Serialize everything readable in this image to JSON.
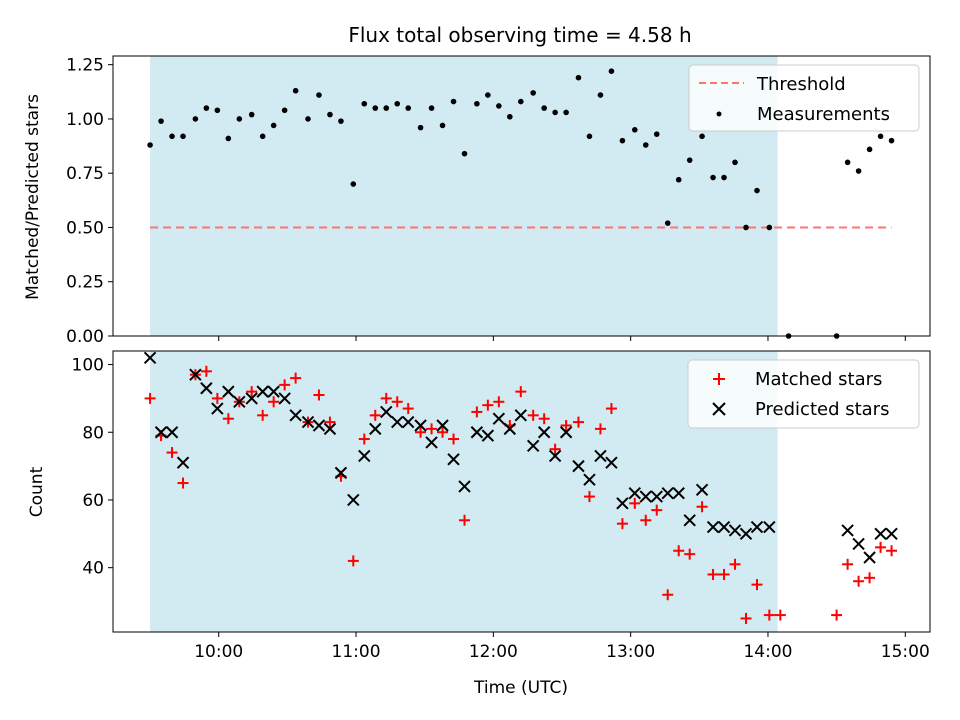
{
  "chart_data": {
    "title": "Flux total observing time = 4.58 h",
    "xlabel": "Time (UTC)",
    "x_tick_labels": [
      "10:00",
      "11:00",
      "12:00",
      "13:00",
      "14:00",
      "15:00"
    ],
    "x_tick_hours": [
      10,
      11,
      12,
      13,
      14,
      15
    ],
    "xlim_hours": [
      9.23,
      15.18
    ],
    "observing_window_hours": [
      9.5,
      14.07
    ],
    "observing_window_color": "#add8e6",
    "panels": [
      {
        "type": "scatter",
        "ylabel": "Matched/Predicted stars",
        "ylim": [
          0,
          1.29
        ],
        "y_tick_labels": [
          "0.00",
          "0.25",
          "0.50",
          "0.75",
          "1.00",
          "1.25"
        ],
        "y_tick_values": [
          0,
          0.25,
          0.5,
          0.75,
          1.0,
          1.25
        ],
        "legend_position": "top-right",
        "threshold": {
          "name": "Threshold",
          "value": 0.5,
          "x_range": [
            9.5,
            14.9
          ],
          "color": "#ff7373"
        },
        "series": [
          {
            "name": "Measurements",
            "color": "#000000",
            "marker": "dot",
            "points": [
              [
                9.5,
                0.88
              ],
              [
                9.58,
                0.99
              ],
              [
                9.66,
                0.92
              ],
              [
                9.74,
                0.92
              ],
              [
                9.83,
                1.0
              ],
              [
                9.91,
                1.05
              ],
              [
                9.99,
                1.04
              ],
              [
                10.07,
                0.91
              ],
              [
                10.15,
                1.0
              ],
              [
                10.24,
                1.02
              ],
              [
                10.32,
                0.92
              ],
              [
                10.4,
                0.97
              ],
              [
                10.48,
                1.04
              ],
              [
                10.56,
                1.13
              ],
              [
                10.65,
                1.0
              ],
              [
                10.73,
                1.11
              ],
              [
                10.81,
                1.02
              ],
              [
                10.89,
                0.99
              ],
              [
                10.98,
                0.7
              ],
              [
                11.06,
                1.07
              ],
              [
                11.14,
                1.05
              ],
              [
                11.22,
                1.05
              ],
              [
                11.3,
                1.07
              ],
              [
                11.38,
                1.05
              ],
              [
                11.47,
                0.96
              ],
              [
                11.55,
                1.05
              ],
              [
                11.63,
                0.97
              ],
              [
                11.71,
                1.08
              ],
              [
                11.79,
                0.84
              ],
              [
                11.88,
                1.07
              ],
              [
                11.96,
                1.11
              ],
              [
                12.04,
                1.06
              ],
              [
                12.12,
                1.01
              ],
              [
                12.2,
                1.08
              ],
              [
                12.29,
                1.12
              ],
              [
                12.37,
                1.05
              ],
              [
                12.45,
                1.03
              ],
              [
                12.53,
                1.03
              ],
              [
                12.62,
                1.19
              ],
              [
                12.7,
                0.92
              ],
              [
                12.78,
                1.11
              ],
              [
                12.86,
                1.22
              ],
              [
                12.94,
                0.9
              ],
              [
                13.03,
                0.95
              ],
              [
                13.11,
                0.88
              ],
              [
                13.19,
                0.93
              ],
              [
                13.27,
                0.52
              ],
              [
                13.35,
                0.72
              ],
              [
                13.43,
                0.81
              ],
              [
                13.52,
                0.92
              ],
              [
                13.6,
                0.73
              ],
              [
                13.68,
                0.73
              ],
              [
                13.76,
                0.8
              ],
              [
                13.84,
                0.5
              ],
              [
                13.92,
                0.67
              ],
              [
                14.01,
                0.5
              ],
              [
                14.15,
                0.0
              ],
              [
                14.5,
                0.0
              ],
              [
                14.58,
                0.8
              ],
              [
                14.66,
                0.76
              ],
              [
                14.74,
                0.86
              ],
              [
                14.82,
                0.92
              ],
              [
                14.9,
                0.9
              ]
            ]
          }
        ]
      },
      {
        "type": "scatter",
        "ylabel": "Count",
        "ylim": [
          21,
          104
        ],
        "y_tick_labels": [
          "40",
          "60",
          "80",
          "100"
        ],
        "y_tick_values": [
          40,
          60,
          80,
          100
        ],
        "legend_position": "top-right",
        "series": [
          {
            "name": "Matched stars",
            "color": "#ff0000",
            "marker": "plus",
            "points": [
              [
                9.5,
                90
              ],
              [
                9.58,
                79
              ],
              [
                9.66,
                74
              ],
              [
                9.74,
                65
              ],
              [
                9.83,
                97
              ],
              [
                9.91,
                98
              ],
              [
                9.99,
                90
              ],
              [
                10.07,
                84
              ],
              [
                10.15,
                89
              ],
              [
                10.24,
                92
              ],
              [
                10.32,
                85
              ],
              [
                10.4,
                89
              ],
              [
                10.48,
                94
              ],
              [
                10.56,
                96
              ],
              [
                10.65,
                83
              ],
              [
                10.73,
                91
              ],
              [
                10.81,
                83
              ],
              [
                10.89,
                67
              ],
              [
                10.98,
                42
              ],
              [
                11.06,
                78
              ],
              [
                11.14,
                85
              ],
              [
                11.22,
                90
              ],
              [
                11.3,
                89
              ],
              [
                11.38,
                87
              ],
              [
                11.47,
                80
              ],
              [
                11.55,
                81
              ],
              [
                11.63,
                80
              ],
              [
                11.71,
                78
              ],
              [
                11.79,
                54
              ],
              [
                11.88,
                86
              ],
              [
                11.96,
                88
              ],
              [
                12.04,
                89
              ],
              [
                12.12,
                82
              ],
              [
                12.2,
                92
              ],
              [
                12.29,
                85
              ],
              [
                12.37,
                84
              ],
              [
                12.45,
                75
              ],
              [
                12.53,
                82
              ],
              [
                12.62,
                83
              ],
              [
                12.7,
                61
              ],
              [
                12.78,
                81
              ],
              [
                12.86,
                87
              ],
              [
                12.94,
                53
              ],
              [
                13.03,
                59
              ],
              [
                13.11,
                54
              ],
              [
                13.19,
                57
              ],
              [
                13.27,
                32
              ],
              [
                13.35,
                45
              ],
              [
                13.43,
                44
              ],
              [
                13.52,
                58
              ],
              [
                13.6,
                38
              ],
              [
                13.68,
                38
              ],
              [
                13.76,
                41
              ],
              [
                13.84,
                25
              ],
              [
                13.92,
                35
              ],
              [
                14.01,
                26
              ],
              [
                14.09,
                26
              ],
              [
                14.5,
                26
              ],
              [
                14.58,
                41
              ],
              [
                14.66,
                36
              ],
              [
                14.74,
                37
              ],
              [
                14.82,
                46
              ],
              [
                14.9,
                45
              ]
            ]
          },
          {
            "name": "Predicted stars",
            "color": "#000000",
            "marker": "x",
            "points": [
              [
                9.5,
                102
              ],
              [
                9.58,
                80
              ],
              [
                9.66,
                80
              ],
              [
                9.74,
                71
              ],
              [
                9.83,
                97
              ],
              [
                9.91,
                93
              ],
              [
                9.99,
                87
              ],
              [
                10.07,
                92
              ],
              [
                10.15,
                89
              ],
              [
                10.24,
                90
              ],
              [
                10.32,
                92
              ],
              [
                10.4,
                92
              ],
              [
                10.48,
                90
              ],
              [
                10.56,
                85
              ],
              [
                10.65,
                83
              ],
              [
                10.73,
                82
              ],
              [
                10.81,
                81
              ],
              [
                10.89,
                68
              ],
              [
                10.98,
                60
              ],
              [
                11.06,
                73
              ],
              [
                11.14,
                81
              ],
              [
                11.22,
                86
              ],
              [
                11.3,
                83
              ],
              [
                11.38,
                83
              ],
              [
                11.47,
                82
              ],
              [
                11.55,
                77
              ],
              [
                11.63,
                82
              ],
              [
                11.71,
                72
              ],
              [
                11.79,
                64
              ],
              [
                11.88,
                80
              ],
              [
                11.96,
                79
              ],
              [
                12.04,
                84
              ],
              [
                12.12,
                81
              ],
              [
                12.2,
                85
              ],
              [
                12.29,
                76
              ],
              [
                12.37,
                80
              ],
              [
                12.45,
                73
              ],
              [
                12.53,
                80
              ],
              [
                12.62,
                70
              ],
              [
                12.7,
                66
              ],
              [
                12.78,
                73
              ],
              [
                12.86,
                71
              ],
              [
                12.94,
                59
              ],
              [
                13.03,
                62
              ],
              [
                13.11,
                61
              ],
              [
                13.19,
                61
              ],
              [
                13.27,
                62
              ],
              [
                13.35,
                62
              ],
              [
                13.43,
                54
              ],
              [
                13.52,
                63
              ],
              [
                13.6,
                52
              ],
              [
                13.68,
                52
              ],
              [
                13.76,
                51
              ],
              [
                13.84,
                50
              ],
              [
                13.92,
                52
              ],
              [
                14.01,
                52
              ],
              [
                14.58,
                51
              ],
              [
                14.66,
                47
              ],
              [
                14.74,
                43
              ],
              [
                14.82,
                50
              ],
              [
                14.9,
                50
              ]
            ]
          }
        ]
      }
    ]
  }
}
